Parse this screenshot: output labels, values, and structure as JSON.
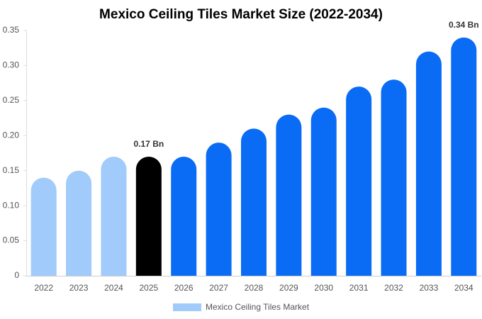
{
  "chart_data": {
    "type": "bar",
    "title": "Mexico Ceiling Tiles Market Size (2022-2034)",
    "categories": [
      "2022",
      "2023",
      "2024",
      "2025",
      "2026",
      "2027",
      "2028",
      "2029",
      "2030",
      "2031",
      "2032",
      "2033",
      "2034"
    ],
    "series": [
      {
        "name": "Mexico Ceiling Tiles Market",
        "color": "#a0cbfb",
        "values": [
          0.14,
          0.15,
          0.17,
          0.17,
          0.17,
          0.19,
          0.21,
          0.23,
          0.24,
          0.27,
          0.28,
          0.32,
          0.34
        ],
        "colors": [
          "#a0cbfb",
          "#a0cbfb",
          "#a0cbfb",
          "#000000",
          "#0a6cf5",
          "#0a6cf5",
          "#0a6cf5",
          "#0a6cf5",
          "#0a6cf5",
          "#0a6cf5",
          "#0a6cf5",
          "#0a6cf5",
          "#0a6cf5"
        ],
        "value_labels": [
          null,
          null,
          null,
          "0.17 Bn",
          null,
          null,
          null,
          null,
          null,
          null,
          null,
          null,
          "0.34 Bn"
        ]
      }
    ],
    "ylim": [
      0,
      0.35
    ],
    "yticks": [
      0,
      0.05,
      {
        "value": 0.1,
        "label": "0.10"
      },
      0.15,
      {
        "value": 0.2,
        "label": "0.20"
      },
      0.25,
      {
        "value": 0.3,
        "label": "0.30"
      },
      0.35
    ],
    "grid": false
  }
}
